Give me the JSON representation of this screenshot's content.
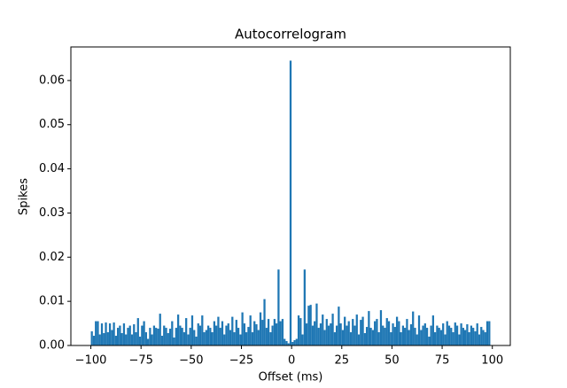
{
  "chart_data": {
    "type": "histogram",
    "title": "Autocorrelogram",
    "xlabel": "Offset (ms)",
    "ylabel": "Spikes",
    "color": "#1f77b4",
    "bins": [
      -100,
      -99,
      -98,
      -97,
      -96,
      -95,
      -94,
      -93,
      -92,
      -91,
      -90,
      -89,
      -88,
      -87,
      -86,
      -85,
      -84,
      -83,
      -82,
      -81,
      -80,
      -79,
      -78,
      -77,
      -76,
      -75,
      -74,
      -73,
      -72,
      -71,
      -70,
      -69,
      -68,
      -67,
      -66,
      -65,
      -64,
      -63,
      -62,
      -61,
      -60,
      -59,
      -58,
      -57,
      -56,
      -55,
      -54,
      -53,
      -52,
      -51,
      -50,
      -49,
      -48,
      -47,
      -46,
      -45,
      -44,
      -43,
      -42,
      -41,
      -40,
      -39,
      -38,
      -37,
      -36,
      -35,
      -34,
      -33,
      -32,
      -31,
      -30,
      -29,
      -28,
      -27,
      -26,
      -25,
      -24,
      -23,
      -22,
      -21,
      -20,
      -19,
      -18,
      -17,
      -16,
      -15,
      -14,
      -13,
      -12,
      -11,
      -10,
      -9,
      -8,
      -7,
      -6,
      -5,
      -4,
      -3,
      -2,
      -1,
      0,
      1,
      2,
      3,
      4,
      5,
      6,
      7,
      8,
      9,
      10,
      11,
      12,
      13,
      14,
      15,
      16,
      17,
      18,
      19,
      20,
      21,
      22,
      23,
      24,
      25,
      26,
      27,
      28,
      29,
      30,
      31,
      32,
      33,
      34,
      35,
      36,
      37,
      38,
      39,
      40,
      41,
      42,
      43,
      44,
      45,
      46,
      47,
      48,
      49,
      50,
      51,
      52,
      53,
      54,
      55,
      56,
      57,
      58,
      59,
      60,
      61,
      62,
      63,
      64,
      65,
      66,
      67,
      68,
      69,
      70,
      71,
      72,
      73,
      74,
      75,
      76,
      77,
      78,
      79,
      80,
      81,
      82,
      83,
      84,
      85,
      86,
      87,
      88,
      89,
      90,
      91,
      92,
      93,
      94,
      95,
      96,
      97,
      98,
      99
    ],
    "values": [
      0.0032,
      0.0022,
      0.0055,
      0.0055,
      0.0025,
      0.005,
      0.0028,
      0.0052,
      0.003,
      0.005,
      0.0035,
      0.0052,
      0.0022,
      0.004,
      0.0045,
      0.0028,
      0.005,
      0.0025,
      0.004,
      0.0045,
      0.0025,
      0.0048,
      0.003,
      0.0062,
      0.002,
      0.0045,
      0.0055,
      0.003,
      0.0015,
      0.004,
      0.0025,
      0.0045,
      0.004,
      0.0038,
      0.0072,
      0.0022,
      0.0045,
      0.004,
      0.0028,
      0.0038,
      0.0055,
      0.0018,
      0.004,
      0.007,
      0.0045,
      0.004,
      0.003,
      0.0062,
      0.0025,
      0.004,
      0.0068,
      0.0035,
      0.002,
      0.005,
      0.0045,
      0.0068,
      0.003,
      0.0035,
      0.0045,
      0.004,
      0.003,
      0.0055,
      0.0045,
      0.0065,
      0.004,
      0.0055,
      0.0025,
      0.0045,
      0.005,
      0.0035,
      0.0065,
      0.003,
      0.0058,
      0.004,
      0.0025,
      0.0075,
      0.005,
      0.003,
      0.0042,
      0.0068,
      0.003,
      0.0055,
      0.0048,
      0.0035,
      0.0075,
      0.0058,
      0.0105,
      0.004,
      0.006,
      0.003,
      0.0045,
      0.006,
      0.005,
      0.0172,
      0.0055,
      0.006,
      0.0015,
      0.001,
      0.0005,
      0.0645,
      0.0008,
      0.0012,
      0.0015,
      0.0068,
      0.0062,
      0.0025,
      0.0172,
      0.005,
      0.009,
      0.0092,
      0.0045,
      0.0055,
      0.0095,
      0.004,
      0.005,
      0.007,
      0.0035,
      0.006,
      0.0045,
      0.005,
      0.0072,
      0.003,
      0.0045,
      0.0088,
      0.005,
      0.0035,
      0.0065,
      0.0045,
      0.0055,
      0.003,
      0.006,
      0.0045,
      0.007,
      0.0025,
      0.0058,
      0.0065,
      0.0028,
      0.0042,
      0.0078,
      0.004,
      0.0035,
      0.0055,
      0.006,
      0.003,
      0.008,
      0.0045,
      0.004,
      0.0062,
      0.0055,
      0.003,
      0.005,
      0.0042,
      0.0065,
      0.0055,
      0.003,
      0.0045,
      0.004,
      0.006,
      0.0035,
      0.0048,
      0.0077,
      0.004,
      0.0025,
      0.0068,
      0.0035,
      0.0045,
      0.005,
      0.004,
      0.002,
      0.0045,
      0.0068,
      0.003,
      0.0045,
      0.004,
      0.0035,
      0.005,
      0.0025,
      0.0055,
      0.0045,
      0.004,
      0.003,
      0.0052,
      0.0045,
      0.0025,
      0.005,
      0.004,
      0.0035,
      0.0048,
      0.003,
      0.0045,
      0.004,
      0.0032,
      0.005,
      0.0025,
      0.0042,
      0.0035,
      0.003,
      0.0055,
      0.0055
    ],
    "xlim": [
      -109.95,
      108.95
    ],
    "xticks": [
      {
        "value": -100,
        "label": "−100"
      },
      {
        "value": -75,
        "label": "−75"
      },
      {
        "value": -50,
        "label": "−50"
      },
      {
        "value": -25,
        "label": "−25"
      },
      0,
      25,
      50,
      75,
      100
    ],
    "ylim": [
      0,
      0.0676
    ],
    "yticks": [
      {
        "value": 0,
        "label": "0.00"
      },
      0.01,
      0.02,
      0.03,
      0.04,
      0.05,
      0.06
    ]
  }
}
